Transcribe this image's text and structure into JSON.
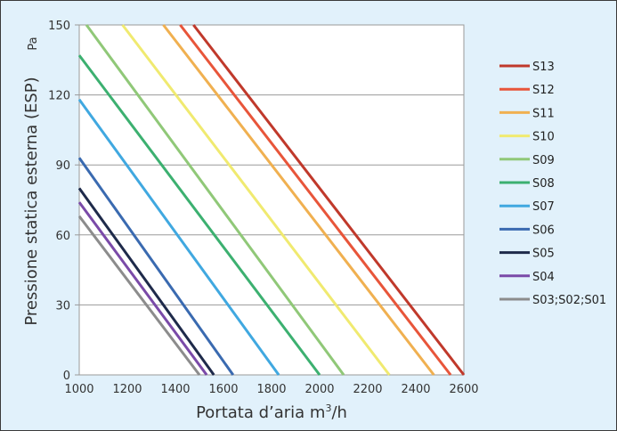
{
  "chart_data": {
    "type": "line",
    "xlabel_main": "Portata d’aria m",
    "xlabel_sup": "3",
    "xlabel_tail": "/h",
    "ylabel": "Pressione statica esterna (ESP)",
    "y_unit": "Pa",
    "xlim": [
      1000,
      2600
    ],
    "ylim": [
      0,
      150
    ],
    "x_ticks": [
      1000,
      1200,
      1400,
      1600,
      1800,
      2000,
      2200,
      2400,
      2600
    ],
    "y_ticks": [
      0,
      30,
      60,
      90,
      120,
      150
    ],
    "grid": "horizontal",
    "legend_position": "right",
    "series": [
      {
        "name": "S13",
        "color": "#c0392b",
        "x": [
          1475,
          2600
        ],
        "y": [
          150,
          0
        ]
      },
      {
        "name": "S12",
        "color": "#e8553a",
        "x": [
          1420,
          2545
        ],
        "y": [
          150,
          0
        ]
      },
      {
        "name": "S11",
        "color": "#f0b050",
        "x": [
          1350,
          2475
        ],
        "y": [
          150,
          0
        ]
      },
      {
        "name": "S10",
        "color": "#f0ea70",
        "x": [
          1180,
          2290
        ],
        "y": [
          150,
          0
        ]
      },
      {
        "name": "S09",
        "color": "#90c878",
        "x": [
          1030,
          2100
        ],
        "y": [
          150,
          0
        ]
      },
      {
        "name": "S08",
        "color": "#3cb070",
        "x": [
          1000,
          2000
        ],
        "y": [
          137,
          0
        ]
      },
      {
        "name": "S07",
        "color": "#40a8e0",
        "x": [
          1000,
          1830
        ],
        "y": [
          118,
          0
        ]
      },
      {
        "name": "S06",
        "color": "#3a6ab0",
        "x": [
          1000,
          1640
        ],
        "y": [
          93,
          0
        ]
      },
      {
        "name": "S05",
        "color": "#1e2a4a",
        "x": [
          1000,
          1560
        ],
        "y": [
          80,
          0
        ]
      },
      {
        "name": "S04",
        "color": "#7a4aa8",
        "x": [
          1000,
          1530
        ],
        "y": [
          74,
          0
        ]
      },
      {
        "name": "S03;S02;S01",
        "color": "#8c8c8c",
        "x": [
          1000,
          1500
        ],
        "y": [
          68,
          0
        ]
      }
    ]
  }
}
